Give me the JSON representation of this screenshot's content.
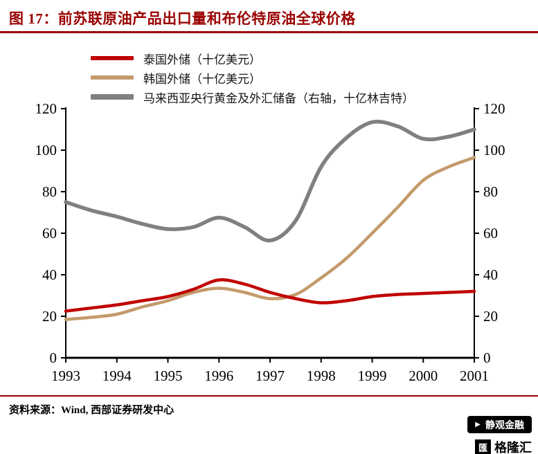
{
  "header": {
    "title": "图 17：前苏联原油产品出口量和布伦特原油全球价格"
  },
  "footer": {
    "source": "资料来源：Wind, 西部证券研发中心"
  },
  "watermark": {
    "banner_text": "静观金融",
    "logo_glyph": "匯",
    "logo_text": "格隆汇"
  },
  "theme": {
    "accent": "#990000",
    "axis_color": "#000000"
  },
  "chart_data": {
    "type": "line",
    "title": "图 17：前苏联原油产品出口量和布伦特原油全球价格",
    "x": [
      1993,
      1993.5,
      1994,
      1994.5,
      1995,
      1995.5,
      1996,
      1996.5,
      1997,
      1997.5,
      1998,
      1998.5,
      1999,
      1999.5,
      2000,
      2000.5,
      2001
    ],
    "series": [
      {
        "name": "泰国外储（十亿美元）",
        "color": "#c00000",
        "width": 4.5,
        "axis": "left",
        "values": [
          22.5,
          24,
          25.5,
          27.5,
          29.5,
          33,
          37.5,
          35.5,
          31.5,
          28.5,
          26.5,
          27.5,
          29.5,
          30.5,
          31,
          31.5,
          32
        ]
      },
      {
        "name": "韩国外储（十亿美元）",
        "color": "#c49a6c",
        "width": 4.5,
        "axis": "left",
        "values": [
          18.5,
          19.5,
          21,
          24.5,
          27.5,
          31.5,
          33.5,
          31.5,
          28.5,
          30.5,
          38.5,
          48,
          60,
          72.5,
          85.5,
          92,
          96.5
        ]
      },
      {
        "name": "马来西亚央行黄金及外汇储备（右轴，十亿林吉特）",
        "color": "#808080",
        "width": 5.5,
        "axis": "right",
        "values": [
          75,
          71,
          68,
          64.5,
          62,
          63,
          67.5,
          63,
          56.5,
          66,
          92,
          106,
          113.5,
          111.5,
          105.5,
          106.5,
          110
        ]
      }
    ],
    "xlim": [
      1993,
      2001
    ],
    "ylim_left": [
      0,
      120
    ],
    "ylim_right": [
      0,
      120
    ],
    "x_ticks": [
      1993,
      1994,
      1995,
      1996,
      1997,
      1998,
      1999,
      2000,
      2001
    ],
    "y_ticks_left": [
      0,
      20,
      40,
      60,
      80,
      100,
      120
    ],
    "y_ticks_right": [
      0,
      20,
      40,
      60,
      80,
      100,
      120
    ],
    "grid": false,
    "legend_position": "top-left"
  }
}
